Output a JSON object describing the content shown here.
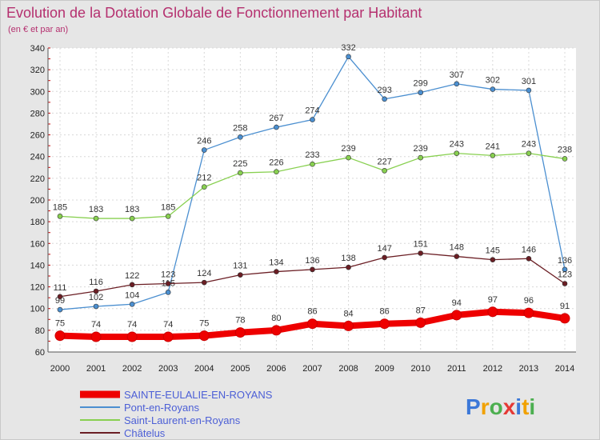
{
  "chart_data": {
    "type": "line",
    "title": "Evolution de la Dotation Globale de Fonctionnement par Habitant",
    "subtitle": "(en € et par an)",
    "x": [
      "2000",
      "2001",
      "2002",
      "2003",
      "2004",
      "2005",
      "2006",
      "2007",
      "2008",
      "2009",
      "2010",
      "2011",
      "2012",
      "2013",
      "2014"
    ],
    "ylim": [
      60,
      340
    ],
    "yticks": [
      60,
      80,
      100,
      120,
      140,
      160,
      180,
      200,
      220,
      240,
      260,
      280,
      300,
      320,
      340
    ],
    "series": [
      {
        "name": "SAINTE-EULALIE-EN-ROYANS",
        "color": "#ee0000",
        "values": [
          75,
          74,
          74,
          74,
          75,
          78,
          80,
          86,
          84,
          86,
          87,
          94,
          97,
          96,
          91
        ]
      },
      {
        "name": "Pont-en-Royans",
        "color": "#4b8fd0",
        "values": [
          99,
          102,
          104,
          115,
          246,
          258,
          267,
          274,
          332,
          293,
          299,
          307,
          302,
          301,
          136
        ]
      },
      {
        "name": "Saint-Laurent-en-Royans",
        "color": "#88d050",
        "values": [
          185,
          183,
          183,
          185,
          212,
          225,
          226,
          233,
          239,
          227,
          239,
          243,
          241,
          243,
          238
        ]
      },
      {
        "name": "Châtelus",
        "color": "#6b1e24",
        "values": [
          111,
          116,
          122,
          123,
          124,
          131,
          134,
          136,
          138,
          147,
          151,
          148,
          145,
          146,
          123
        ]
      }
    ]
  },
  "brand": {
    "letters": [
      "P",
      "r",
      "o",
      "x",
      "i",
      "t",
      "i"
    ],
    "colors": [
      "#3c78d8",
      "#f1a100",
      "#4caf50",
      "#e53935",
      "#3c78d8",
      "#f1a100",
      "#4caf50"
    ]
  }
}
